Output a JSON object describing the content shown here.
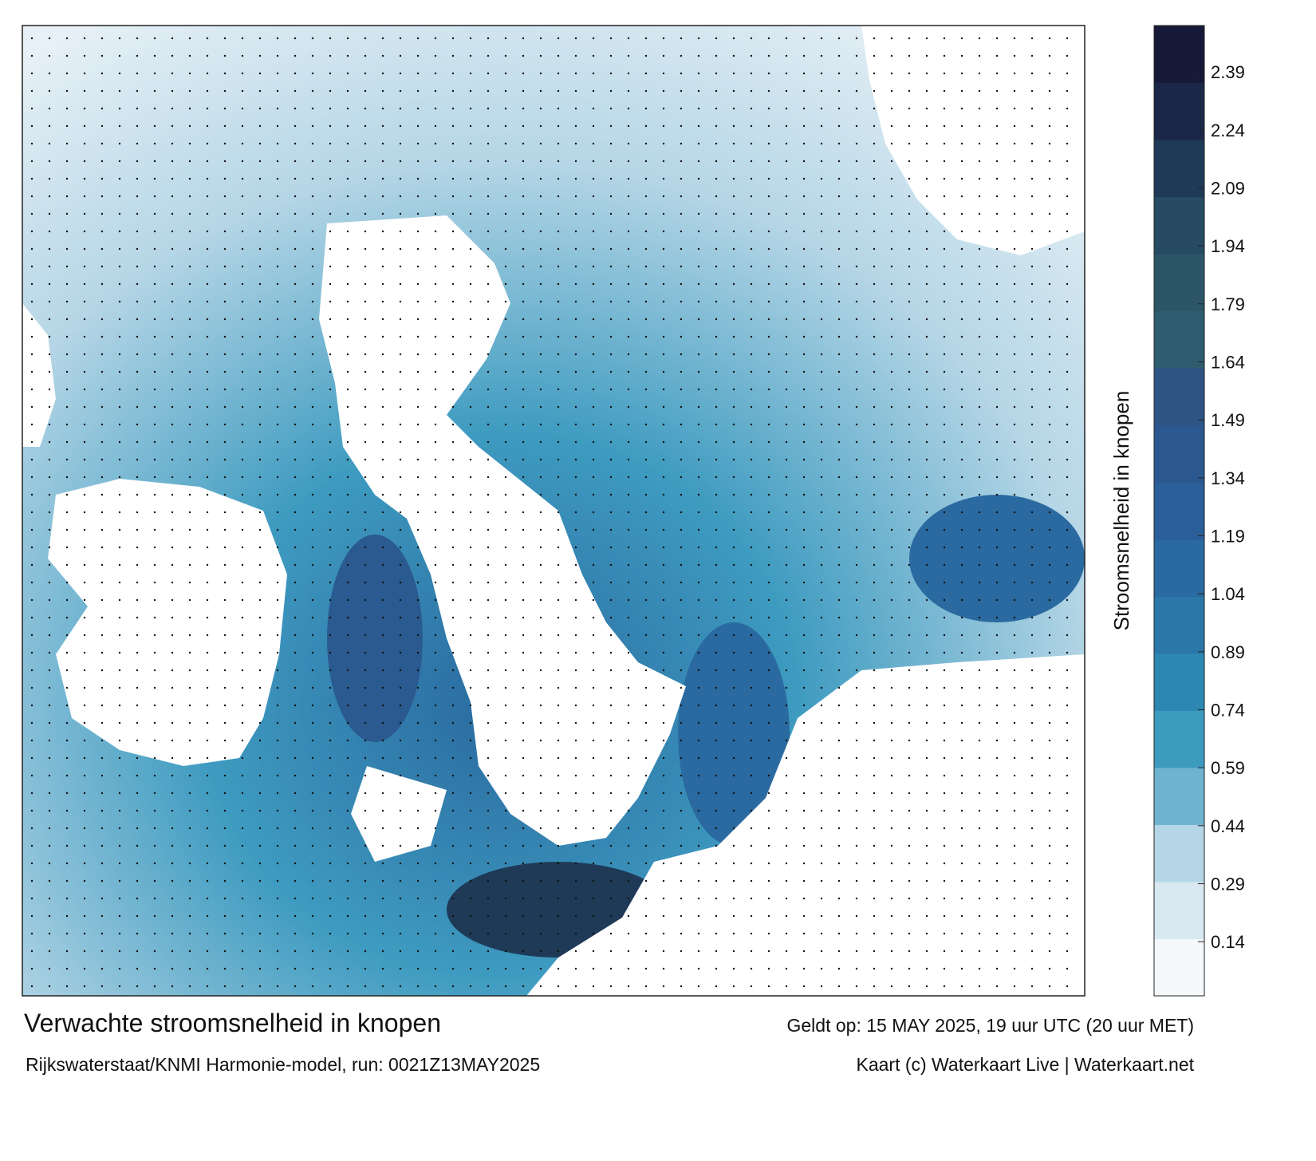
{
  "title": "Verwachte stroomsnelheid in knopen",
  "subtitle": "Rijkswaterstaat/KNMI Harmonie-model, run: 0021Z13MAY2025",
  "valid_time": "Geldt op: 15 MAY 2025, 19 uur UTC (20 uur MET)",
  "credit": "Kaart (c) Waterkaart Live | Waterkaart.net",
  "colorbar": {
    "label": "Stroomsnelheid in knopen",
    "range": [
      0,
      2.51
    ],
    "ticks": [
      0.14,
      0.29,
      0.44,
      0.59,
      0.74,
      0.89,
      1.04,
      1.19,
      1.34,
      1.49,
      1.64,
      1.79,
      1.94,
      2.09,
      2.24,
      2.39
    ],
    "colors": [
      "#f4f8fb",
      "#d7e8f1",
      "#b5d6e6",
      "#6eb3cf",
      "#3e9bc0",
      "#2c88b2",
      "#2a77a8",
      "#2a6aa0",
      "#2b5f99",
      "#2c5890",
      "#2e5484",
      "#2f5d6f",
      "#2c5668",
      "#264b62",
      "#1f3a57",
      "#1a2748",
      "#161a38"
    ]
  }
}
